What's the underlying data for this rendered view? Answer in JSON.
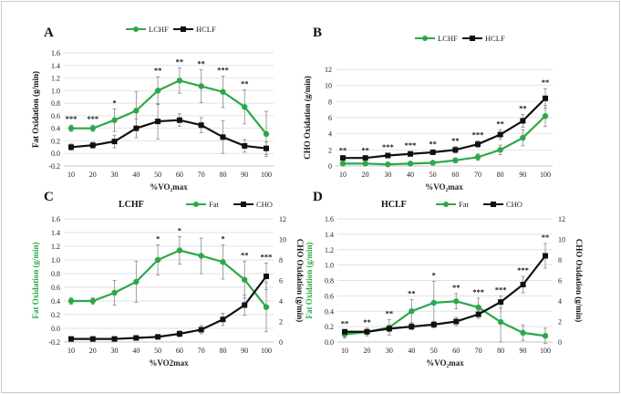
{
  "colors": {
    "lchf": "#2ca84a",
    "hclf": "#111111",
    "fat": "#2ca84a",
    "cho": "#111111",
    "error": "#888888"
  },
  "chart_data": [
    {
      "type": "line",
      "panel": "A",
      "letter": "A",
      "xlabel": "%VO₂max",
      "ylabel": "Fat Oxidation (g/min)",
      "x": [
        10,
        20,
        30,
        40,
        50,
        60,
        70,
        80,
        90,
        100
      ],
      "ylim": [
        -0.2,
        1.6
      ],
      "yticks": [
        -0.2,
        0.0,
        0.2,
        0.4,
        0.6,
        0.8,
        1.0,
        1.2,
        1.4,
        1.6
      ],
      "legend_position": "top-center",
      "series": [
        {
          "name": "LCHF",
          "color": "#2ca84a",
          "marker": "circle",
          "values": [
            0.4,
            0.4,
            0.53,
            0.68,
            1.0,
            1.16,
            1.07,
            0.98,
            0.74,
            0.31
          ],
          "errors": [
            0.05,
            0.05,
            0.18,
            0.3,
            0.22,
            0.2,
            0.26,
            0.25,
            0.27,
            0.36
          ]
        },
        {
          "name": "HCLF",
          "color": "#111111",
          "marker": "square",
          "values": [
            0.1,
            0.13,
            0.19,
            0.4,
            0.51,
            0.53,
            0.45,
            0.26,
            0.12,
            0.08
          ],
          "errors": [
            0.05,
            0.05,
            0.1,
            0.15,
            0.28,
            0.1,
            0.12,
            0.26,
            0.1,
            0.1
          ]
        }
      ],
      "annotations": [
        "***",
        "***",
        "*",
        "",
        "**",
        "**",
        "**",
        "***",
        "**",
        ""
      ]
    },
    {
      "type": "line",
      "panel": "B",
      "letter": "B",
      "xlabel": "%VO₂max",
      "ylabel": "CHO Oxidation (g/min)",
      "x": [
        10,
        20,
        30,
        40,
        50,
        60,
        70,
        80,
        90,
        100
      ],
      "ylim": [
        0,
        12
      ],
      "yticks": [
        0,
        2,
        4,
        6,
        8,
        10,
        12
      ],
      "legend_position": "top-center",
      "series": [
        {
          "name": "LCHF",
          "color": "#2ca84a",
          "marker": "circle",
          "values": [
            0.3,
            0.3,
            0.2,
            0.3,
            0.4,
            0.7,
            1.1,
            2.0,
            3.5,
            6.2
          ],
          "errors": [
            0.1,
            0.1,
            0.1,
            0.1,
            0.2,
            0.3,
            0.4,
            0.6,
            1.0,
            1.3
          ]
        },
        {
          "name": "HCLF",
          "color": "#111111",
          "marker": "square",
          "values": [
            1.0,
            1.0,
            1.3,
            1.5,
            1.7,
            2.0,
            2.7,
            3.9,
            5.6,
            8.4
          ],
          "errors": [
            0.2,
            0.2,
            0.3,
            0.3,
            0.3,
            0.4,
            0.4,
            0.6,
            0.8,
            1.2
          ]
        }
      ],
      "annotations": [
        "**",
        "**",
        "***",
        "***",
        "**",
        "**",
        "***",
        "**",
        "**",
        "**"
      ]
    },
    {
      "type": "line",
      "panel": "C",
      "letter": "C",
      "title": "LCHF",
      "xlabel": "%VO2max",
      "ylabel": "Fat Oxidation (g/min)",
      "y2label": "CHO Oxidation (g/min)",
      "x": [
        10,
        20,
        30,
        40,
        50,
        60,
        70,
        80,
        90,
        100
      ],
      "ylim": [
        -0.2,
        1.6
      ],
      "yticks": [
        -0.2,
        0.0,
        0.2,
        0.4,
        0.6,
        0.8,
        1.0,
        1.2,
        1.4,
        1.6
      ],
      "y2lim": [
        0,
        12
      ],
      "y2ticks": [
        0,
        2,
        4,
        6,
        8,
        10,
        12
      ],
      "legend_position": "top-center",
      "series": [
        {
          "name": "Fat",
          "axis": "left",
          "color": "#2ca84a",
          "marker": "circle",
          "values": [
            0.4,
            0.4,
            0.52,
            0.68,
            1.0,
            1.14,
            1.06,
            0.97,
            0.71,
            0.31
          ],
          "errors": [
            0.05,
            0.05,
            0.18,
            0.3,
            0.22,
            0.2,
            0.26,
            0.25,
            0.27,
            0.36
          ]
        },
        {
          "name": "CHO",
          "axis": "right",
          "color": "#111111",
          "marker": "square",
          "values": [
            0.3,
            0.3,
            0.3,
            0.4,
            0.5,
            0.8,
            1.2,
            2.2,
            3.6,
            6.4
          ],
          "errors": [
            0.1,
            0.1,
            0.1,
            0.1,
            0.2,
            0.3,
            0.4,
            0.6,
            1.0,
            1.3
          ]
        }
      ],
      "annotations": [
        "",
        "",
        "",
        "",
        "*",
        "*",
        "",
        "*",
        "**",
        "***"
      ]
    },
    {
      "type": "line",
      "panel": "D",
      "letter": "D",
      "title": "HCLF",
      "xlabel": "%VO₂max",
      "ylabel": "Fat Oxidation (g/min)",
      "y2label": "CHO Oxidation (g/min)",
      "x": [
        10,
        20,
        30,
        40,
        50,
        60,
        70,
        80,
        90,
        100
      ],
      "ylim": [
        0,
        1.6
      ],
      "yticks": [
        0.0,
        0.2,
        0.4,
        0.6,
        0.8,
        1.0,
        1.2,
        1.4,
        1.6
      ],
      "y2lim": [
        0,
        12
      ],
      "y2ticks": [
        0,
        2,
        4,
        6,
        8,
        10,
        12
      ],
      "legend_position": "top-center",
      "series": [
        {
          "name": "Fat",
          "axis": "left",
          "color": "#2ca84a",
          "marker": "circle",
          "values": [
            0.1,
            0.13,
            0.19,
            0.4,
            0.51,
            0.53,
            0.45,
            0.26,
            0.12,
            0.08
          ],
          "errors": [
            0.05,
            0.05,
            0.1,
            0.15,
            0.28,
            0.1,
            0.12,
            0.26,
            0.1,
            0.1
          ]
        },
        {
          "name": "CHO",
          "axis": "right",
          "color": "#111111",
          "marker": "square",
          "values": [
            1.0,
            1.0,
            1.3,
            1.5,
            1.7,
            2.0,
            2.7,
            3.9,
            5.6,
            8.4
          ],
          "errors": [
            0.2,
            0.2,
            0.3,
            0.3,
            0.3,
            0.4,
            0.4,
            0.6,
            0.8,
            1.2
          ]
        }
      ],
      "annotations": [
        "**",
        "**",
        "**",
        "**",
        "*",
        "**",
        "***",
        "***",
        "***",
        "**"
      ]
    }
  ]
}
